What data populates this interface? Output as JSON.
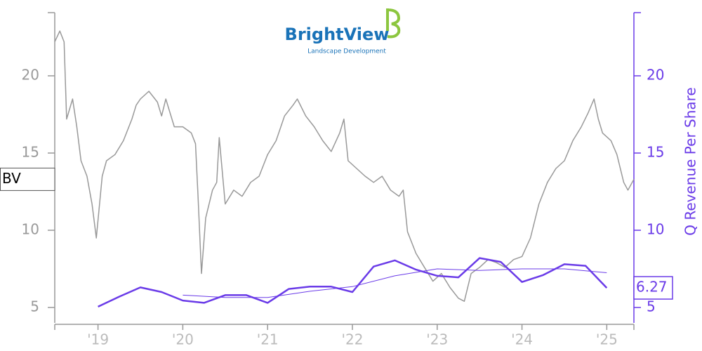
{
  "chart_data": {
    "type": "line",
    "logo": {
      "name": "BrightView",
      "tagline": "Landscape Development"
    },
    "y2_label": "Q Revenue Per Share",
    "xlim": [
      2018.49,
      2025.32
    ],
    "xticks": [
      {
        "value": 2019,
        "label": "'19"
      },
      {
        "value": 2020,
        "label": "'20"
      },
      {
        "value": 2021,
        "label": "'21"
      },
      {
        "value": 2022,
        "label": "'22"
      },
      {
        "value": 2023,
        "label": "'23"
      },
      {
        "value": 2024,
        "label": "'24"
      },
      {
        "value": 2025,
        "label": "'25"
      }
    ],
    "ylim": [
      4,
      24
    ],
    "yticks": [
      5,
      10,
      15,
      20
    ],
    "y2lim": [
      4,
      24
    ],
    "y2ticks": [
      5,
      10,
      15,
      20
    ],
    "y_color": "#999999",
    "y2_color": "#6a3be8",
    "series": [
      {
        "name": "BV",
        "color": "#999999",
        "x": [
          2018.49,
          2018.55,
          2018.6,
          2018.63,
          2018.7,
          2018.75,
          2018.8,
          2018.87,
          2018.93,
          2018.98,
          2019.05,
          2019.1,
          2019.2,
          2019.3,
          2019.4,
          2019.45,
          2019.5,
          2019.6,
          2019.7,
          2019.75,
          2019.8,
          2019.9,
          2020.0,
          2020.1,
          2020.15,
          2020.18,
          2020.22,
          2020.27,
          2020.35,
          2020.4,
          2020.43,
          2020.5,
          2020.6,
          2020.7,
          2020.8,
          2020.9,
          2021.0,
          2021.1,
          2021.2,
          2021.3,
          2021.35,
          2021.45,
          2021.55,
          2021.65,
          2021.75,
          2021.85,
          2021.9,
          2021.95,
          2022.05,
          2022.15,
          2022.25,
          2022.35,
          2022.45,
          2022.55,
          2022.6,
          2022.65,
          2022.75,
          2022.85,
          2022.95,
          2023.05,
          2023.15,
          2023.25,
          2023.32,
          2023.4,
          2023.5,
          2023.6,
          2023.7,
          2023.8,
          2023.9,
          2024.0,
          2024.1,
          2024.2,
          2024.3,
          2024.4,
          2024.5,
          2024.6,
          2024.7,
          2024.78,
          2024.85,
          2024.9,
          2024.95,
          2025.05,
          2025.12,
          2025.2,
          2025.25,
          2025.32
        ],
        "values": [
          22.2,
          22.9,
          22.2,
          17.2,
          18.5,
          16.7,
          14.5,
          13.5,
          11.7,
          9.5,
          13.5,
          14.5,
          14.9,
          15.8,
          17.2,
          18.1,
          18.5,
          19.0,
          18.3,
          17.4,
          18.5,
          16.7,
          16.7,
          16.3,
          15.6,
          12.2,
          7.2,
          10.8,
          12.6,
          13.1,
          16.0,
          11.7,
          12.6,
          12.2,
          13.1,
          13.5,
          14.9,
          15.8,
          17.4,
          18.1,
          18.5,
          17.4,
          16.7,
          15.8,
          15.1,
          16.3,
          17.2,
          14.5,
          14.0,
          13.5,
          13.1,
          13.5,
          12.6,
          12.2,
          12.6,
          9.9,
          8.5,
          7.6,
          6.7,
          7.2,
          6.3,
          5.6,
          5.4,
          7.2,
          7.6,
          8.1,
          7.9,
          7.6,
          8.1,
          8.3,
          9.5,
          11.7,
          13.1,
          14.0,
          14.5,
          15.8,
          16.7,
          17.6,
          18.5,
          17.2,
          16.3,
          15.8,
          14.9,
          13.1,
          12.6,
          13.3
        ]
      },
      {
        "color": "#6a3be8",
        "axis": "y2",
        "width": 2.5,
        "x": [
          2019.0,
          2019.25,
          2019.5,
          2019.75,
          2020.0,
          2020.25,
          2020.5,
          2020.75,
          2021.0,
          2021.25,
          2021.5,
          2021.75,
          2022.0,
          2022.25,
          2022.5,
          2022.75,
          2023.0,
          2023.25,
          2023.5,
          2023.75,
          2024.0,
          2024.25,
          2024.5,
          2024.75,
          2025.0
        ],
        "values": [
          5.05,
          5.7,
          6.3,
          6.0,
          5.45,
          5.3,
          5.8,
          5.8,
          5.3,
          6.2,
          6.35,
          6.35,
          6.0,
          7.65,
          8.05,
          7.45,
          7.05,
          6.95,
          8.2,
          7.95,
          6.65,
          7.1,
          7.8,
          7.7,
          6.27
        ]
      },
      {
        "color": "#6a3be8",
        "axis": "y2",
        "width": 1,
        "x": [
          2020.0,
          2020.5,
          2021.0,
          2021.5,
          2022.0,
          2022.5,
          2023.0,
          2023.5,
          2024.0,
          2024.5,
          2025.0
        ],
        "values": [
          5.8,
          5.65,
          5.65,
          6.05,
          6.35,
          7.05,
          7.5,
          7.4,
          7.5,
          7.5,
          7.25
        ]
      }
    ]
  }
}
